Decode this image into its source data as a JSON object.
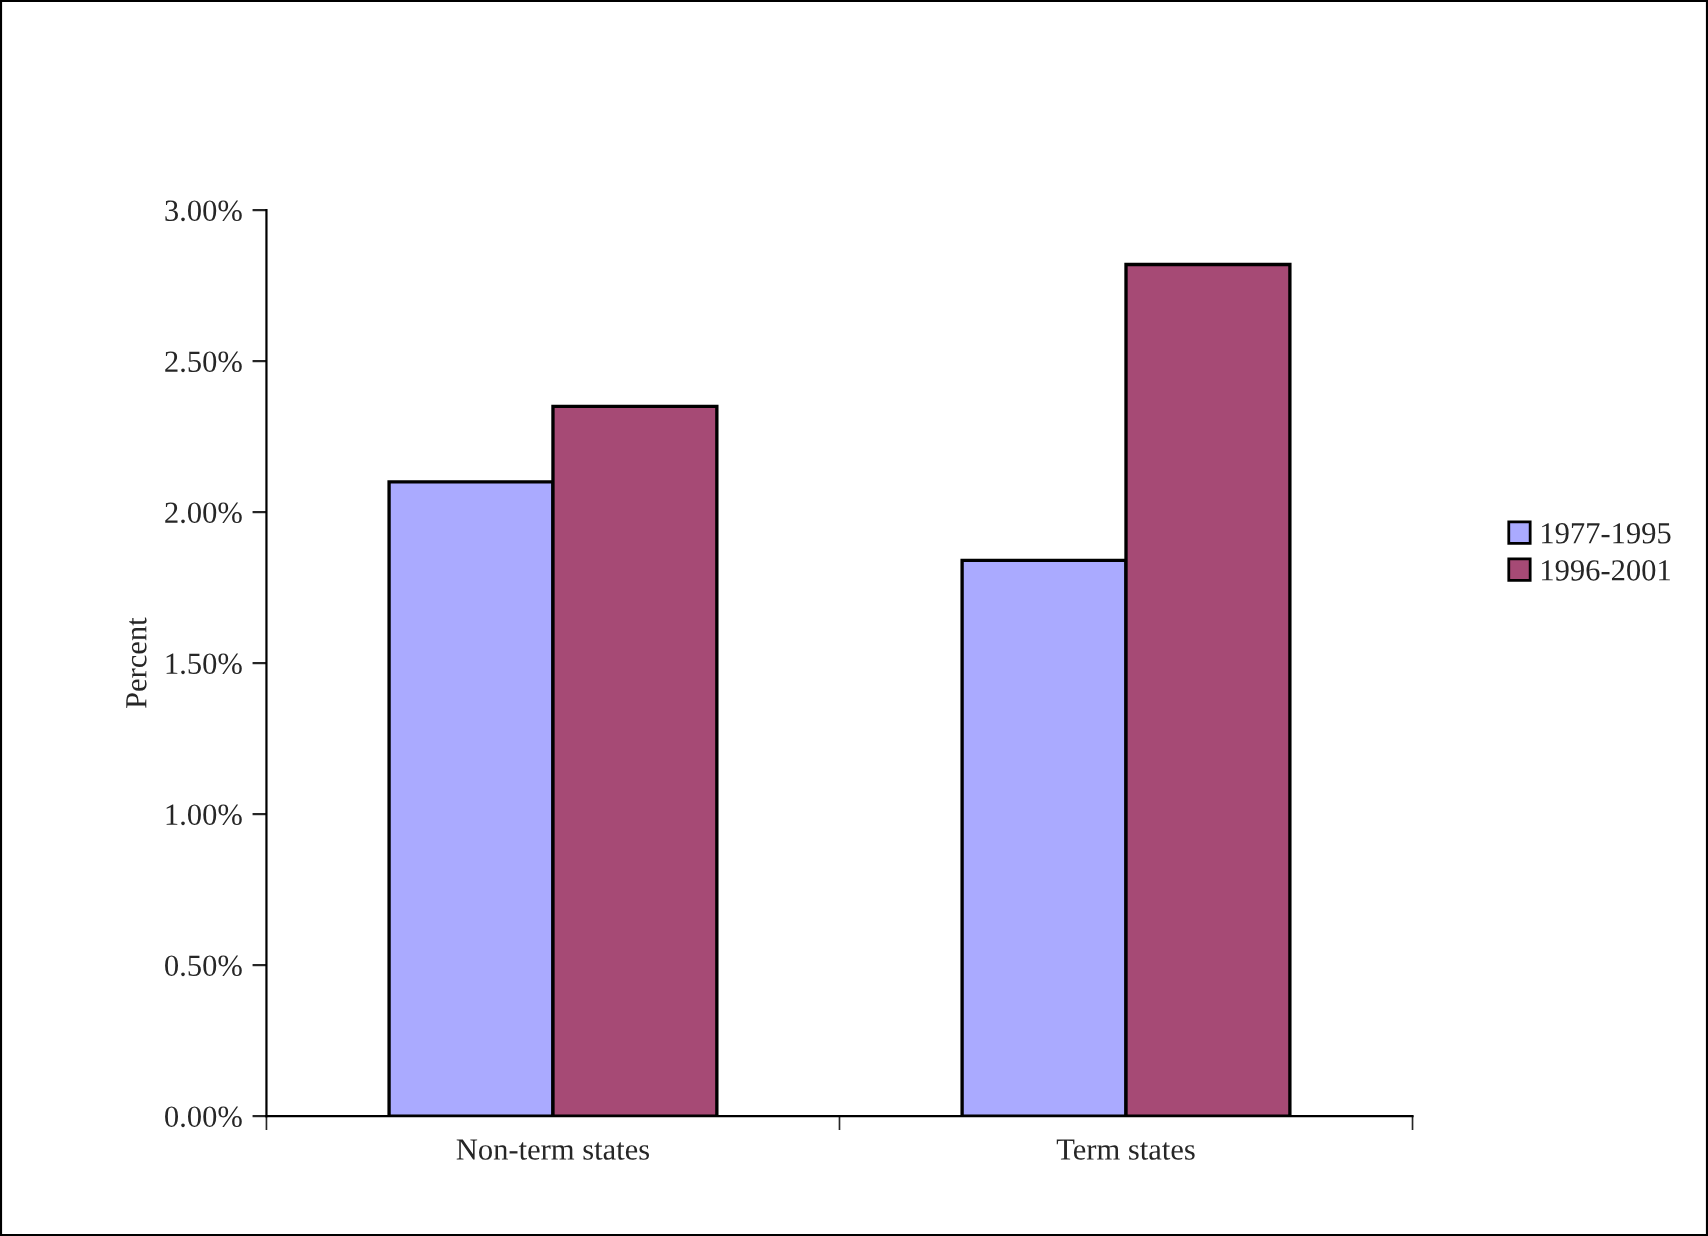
{
  "chart_data": {
    "type": "bar",
    "ylabel": "Percent",
    "categories": [
      "Non-term states",
      "Term states"
    ],
    "series": [
      {
        "name": "1977-1995",
        "color": "#aaaaff",
        "values": [
          2.1,
          1.84
        ]
      },
      {
        "name": "1996-2001",
        "color": "#a64a75",
        "values": [
          2.35,
          2.82
        ]
      }
    ],
    "ylim": [
      0,
      3
    ],
    "yticks": [
      {
        "value": 0,
        "label": "0.00%"
      },
      {
        "value": 0.5,
        "label": "0.50%"
      },
      {
        "value": 1,
        "label": "1.00%"
      },
      {
        "value": 1.5,
        "label": "1.50%"
      },
      {
        "value": 2,
        "label": "2.00%"
      },
      {
        "value": 2.5,
        "label": "2.50%"
      },
      {
        "value": 3,
        "label": "3.00%"
      }
    ],
    "grid": false,
    "legend": "right"
  }
}
